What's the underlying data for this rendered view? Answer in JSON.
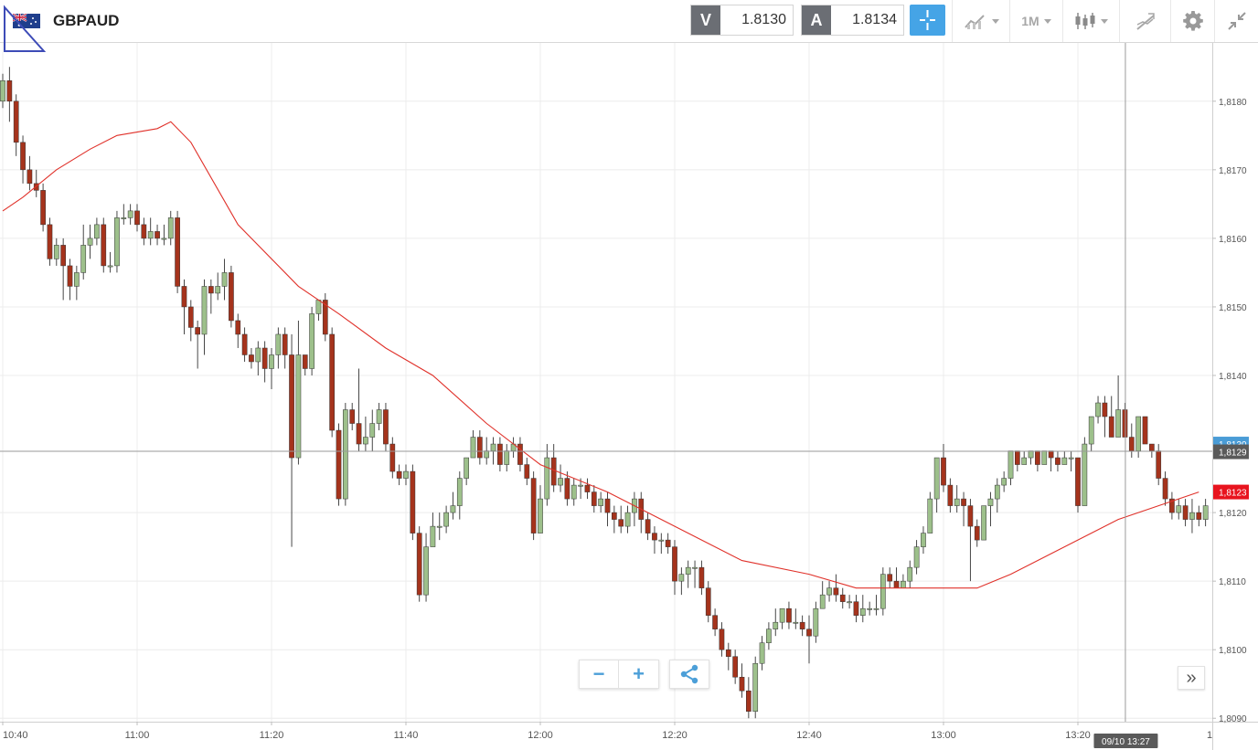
{
  "header": {
    "symbol": "GBPAUD",
    "bid": {
      "tag": "V",
      "value": "1.8130"
    },
    "ask": {
      "tag": "A",
      "value": "1.8134"
    },
    "timeframe": "1M",
    "icons": [
      "flag-icon",
      "crosshair-icon",
      "indicators-icon",
      "candle-type-icon",
      "drawing-icon",
      "gear-icon",
      "collapse-icon"
    ]
  },
  "controls": {
    "zoom_out": "−",
    "zoom_in": "+",
    "scroll_right": "»"
  },
  "colors": {
    "bull": "#9dc08b",
    "bear": "#a5331c",
    "ma": "#e0312a",
    "crosshair_label": "#4a9cd6",
    "last_price_label": "#e8141e"
  },
  "chart_data": {
    "type": "candlestick",
    "symbol": "GBPAUD",
    "interval": "1M",
    "x_ticks": [
      "10:40",
      "11:00",
      "11:20",
      "11:40",
      "12:00",
      "12:20",
      "12:40",
      "13:00",
      "13:20"
    ],
    "x_tick_minutes": [
      640,
      660,
      680,
      700,
      720,
      740,
      760,
      780,
      800
    ],
    "x_start_minute": 640,
    "x_range_minutes": [
      640,
      818
    ],
    "right_edge_tick": "1",
    "y_ticks": [
      "1,8180",
      "1,8170",
      "1,8160",
      "1,8150",
      "1,8140",
      "1,8120",
      "1,8110",
      "1,8100",
      "1,8090"
    ],
    "ylim": [
      1.80895,
      1.81885
    ],
    "crosshair": {
      "time": "09/10 13:27",
      "minute": 807,
      "price": "1,8129",
      "price_value": 1.8129
    },
    "last_price": {
      "label": "1,8123",
      "value": 1.8123
    },
    "hidden_price_label": {
      "label": "1,8130",
      "value": 1.813
    },
    "candles_ohlc": [
      [
        1.818,
        1.8183,
        1.8184,
        1.8179
      ],
      [
        1.8183,
        1.818,
        1.8185,
        1.8177
      ],
      [
        1.818,
        1.8174,
        1.8181,
        1.8172
      ],
      [
        1.8174,
        1.817,
        1.8175,
        1.8168
      ],
      [
        1.817,
        1.8168,
        1.8172,
        1.8167
      ],
      [
        1.8168,
        1.8167,
        1.817,
        1.8166
      ],
      [
        1.8167,
        1.8162,
        1.8168,
        1.8161
      ],
      [
        1.8162,
        1.8157,
        1.8163,
        1.8156
      ],
      [
        1.8157,
        1.8159,
        1.816,
        1.8156
      ],
      [
        1.8159,
        1.8156,
        1.816,
        1.8151
      ],
      [
        1.8156,
        1.8153,
        1.8157,
        1.8151
      ],
      [
        1.8153,
        1.8155,
        1.8156,
        1.8151
      ],
      [
        1.8155,
        1.8159,
        1.8162,
        1.8154
      ],
      [
        1.8159,
        1.816,
        1.8162,
        1.8157
      ],
      [
        1.816,
        1.8162,
        1.8163,
        1.8159
      ],
      [
        1.8162,
        1.8156,
        1.8163,
        1.8155
      ],
      [
        1.8156,
        1.8156,
        1.8158,
        1.8155
      ],
      [
        1.8156,
        1.8163,
        1.8164,
        1.8155
      ],
      [
        1.8163,
        1.8163,
        1.8165,
        1.8162
      ],
      [
        1.8163,
        1.8164,
        1.8165,
        1.8162
      ],
      [
        1.8164,
        1.8162,
        1.8165,
        1.8161
      ],
      [
        1.8162,
        1.816,
        1.8163,
        1.8159
      ],
      [
        1.816,
        1.8161,
        1.8163,
        1.8159
      ],
      [
        1.8161,
        1.816,
        1.8162,
        1.8159
      ],
      [
        1.816,
        1.816,
        1.8162,
        1.8159
      ],
      [
        1.816,
        1.8163,
        1.8164,
        1.8159
      ],
      [
        1.8163,
        1.8153,
        1.8164,
        1.8152
      ],
      [
        1.8153,
        1.815,
        1.8154,
        1.8146
      ],
      [
        1.815,
        1.8147,
        1.8151,
        1.8145
      ],
      [
        1.8147,
        1.8146,
        1.8148,
        1.8141
      ],
      [
        1.8146,
        1.8153,
        1.8154,
        1.8143
      ],
      [
        1.8153,
        1.8152,
        1.8154,
        1.8149
      ],
      [
        1.8152,
        1.8153,
        1.8155,
        1.8151
      ],
      [
        1.8153,
        1.8155,
        1.8157,
        1.8151
      ],
      [
        1.8155,
        1.8148,
        1.8156,
        1.8147
      ],
      [
        1.8148,
        1.8146,
        1.8149,
        1.8144
      ],
      [
        1.8146,
        1.8143,
        1.8147,
        1.8142
      ],
      [
        1.8143,
        1.8142,
        1.8144,
        1.8141
      ],
      [
        1.8142,
        1.8144,
        1.8145,
        1.814
      ],
      [
        1.8144,
        1.8141,
        1.8145,
        1.8139
      ],
      [
        1.8141,
        1.8143,
        1.8144,
        1.8138
      ],
      [
        1.8143,
        1.8146,
        1.8147,
        1.8141
      ],
      [
        1.8146,
        1.8143,
        1.8147,
        1.8141
      ],
      [
        1.8143,
        1.8128,
        1.8146,
        1.8115
      ],
      [
        1.8128,
        1.8143,
        1.8148,
        1.8127
      ],
      [
        1.8143,
        1.8141,
        1.8143,
        1.814
      ],
      [
        1.8141,
        1.8149,
        1.815,
        1.814
      ],
      [
        1.8149,
        1.8151,
        1.8151,
        1.8148
      ],
      [
        1.8151,
        1.8146,
        1.8152,
        1.8145
      ],
      [
        1.8146,
        1.8132,
        1.8147,
        1.8131
      ],
      [
        1.8132,
        1.8122,
        1.8133,
        1.8121
      ],
      [
        1.8122,
        1.8135,
        1.8136,
        1.8121
      ],
      [
        1.8135,
        1.8133,
        1.8136,
        1.8132
      ],
      [
        1.8133,
        1.813,
        1.8141,
        1.8129
      ],
      [
        1.813,
        1.8131,
        1.8134,
        1.8129
      ],
      [
        1.8131,
        1.8133,
        1.8135,
        1.8129
      ],
      [
        1.8133,
        1.8135,
        1.8136,
        1.8132
      ],
      [
        1.8135,
        1.813,
        1.8136,
        1.8129
      ],
      [
        1.813,
        1.8126,
        1.8131,
        1.8125
      ],
      [
        1.8126,
        1.8125,
        1.8127,
        1.8124
      ],
      [
        1.8125,
        1.8126,
        1.8127,
        1.8124
      ],
      [
        1.8126,
        1.8117,
        1.8127,
        1.8116
      ],
      [
        1.8117,
        1.8108,
        1.8118,
        1.8107
      ],
      [
        1.8108,
        1.8115,
        1.8117,
        1.8107
      ],
      [
        1.8115,
        1.8118,
        1.812,
        1.8115
      ],
      [
        1.8118,
        1.8118,
        1.812,
        1.8116
      ],
      [
        1.8118,
        1.812,
        1.8121,
        1.8117
      ],
      [
        1.812,
        1.8121,
        1.8123,
        1.8119
      ],
      [
        1.8121,
        1.8125,
        1.8126,
        1.8119
      ],
      [
        1.8125,
        1.8128,
        1.8128,
        1.8124
      ],
      [
        1.8128,
        1.8131,
        1.8132,
        1.8128
      ],
      [
        1.8131,
        1.8128,
        1.8132,
        1.8127
      ],
      [
        1.8128,
        1.8129,
        1.8131,
        1.8127
      ],
      [
        1.8129,
        1.813,
        1.8131,
        1.8127
      ],
      [
        1.813,
        1.8127,
        1.8131,
        1.8126
      ],
      [
        1.8127,
        1.8129,
        1.813,
        1.8126
      ],
      [
        1.8129,
        1.813,
        1.8131,
        1.8128
      ],
      [
        1.813,
        1.8127,
        1.8131,
        1.8126
      ],
      [
        1.8127,
        1.8125,
        1.8128,
        1.8124
      ],
      [
        1.8125,
        1.8117,
        1.8126,
        1.8116
      ],
      [
        1.8117,
        1.8122,
        1.8124,
        1.8117
      ],
      [
        1.8122,
        1.8128,
        1.813,
        1.8121
      ],
      [
        1.8128,
        1.8124,
        1.813,
        1.8123
      ],
      [
        1.8124,
        1.8125,
        1.8127,
        1.8123
      ],
      [
        1.8125,
        1.8122,
        1.8126,
        1.8121
      ],
      [
        1.8122,
        1.8124,
        1.8125,
        1.8121
      ],
      [
        1.8124,
        1.8124,
        1.8125,
        1.8122
      ],
      [
        1.8124,
        1.8123,
        1.8125,
        1.8122
      ],
      [
        1.8123,
        1.8121,
        1.8124,
        1.812
      ],
      [
        1.8121,
        1.8122,
        1.8123,
        1.812
      ],
      [
        1.8122,
        1.812,
        1.8123,
        1.8118
      ],
      [
        1.812,
        1.8119,
        1.8121,
        1.8117
      ],
      [
        1.8119,
        1.8118,
        1.8121,
        1.8117
      ],
      [
        1.8118,
        1.812,
        1.8121,
        1.8117
      ],
      [
        1.812,
        1.8122,
        1.8123,
        1.8118
      ],
      [
        1.8122,
        1.8119,
        1.8123,
        1.8117
      ],
      [
        1.8119,
        1.8117,
        1.812,
        1.8116
      ],
      [
        1.8117,
        1.8116,
        1.8118,
        1.8114
      ],
      [
        1.8116,
        1.8116,
        1.8117,
        1.8114
      ],
      [
        1.8116,
        1.8115,
        1.8117,
        1.8114
      ],
      [
        1.8115,
        1.811,
        1.8116,
        1.8108
      ],
      [
        1.811,
        1.8111,
        1.8112,
        1.8108
      ],
      [
        1.8111,
        1.8112,
        1.8113,
        1.8109
      ],
      [
        1.8112,
        1.8112,
        1.8113,
        1.8109
      ],
      [
        1.8112,
        1.8109,
        1.8113,
        1.8108
      ],
      [
        1.8109,
        1.8105,
        1.811,
        1.8104
      ],
      [
        1.8105,
        1.8103,
        1.8106,
        1.8102
      ],
      [
        1.8103,
        1.81,
        1.8104,
        1.8099
      ],
      [
        1.81,
        1.8099,
        1.8101,
        1.8097
      ],
      [
        1.8099,
        1.8096,
        1.81,
        1.8095
      ],
      [
        1.8096,
        1.8094,
        1.8098,
        1.8093
      ],
      [
        1.8094,
        1.8091,
        1.8096,
        1.809
      ],
      [
        1.8091,
        1.8098,
        1.8099,
        1.809
      ],
      [
        1.8098,
        1.8101,
        1.8102,
        1.8097
      ],
      [
        1.8101,
        1.8103,
        1.8104,
        1.81
      ],
      [
        1.8103,
        1.8104,
        1.8106,
        1.8102
      ],
      [
        1.8104,
        1.8106,
        1.8106,
        1.8103
      ],
      [
        1.8106,
        1.8104,
        1.8107,
        1.8103
      ],
      [
        1.8104,
        1.8104,
        1.8106,
        1.8103
      ],
      [
        1.8104,
        1.8103,
        1.8105,
        1.8102
      ],
      [
        1.8103,
        1.8102,
        1.8105,
        1.8098
      ],
      [
        1.8102,
        1.8106,
        1.8107,
        1.8101
      ],
      [
        1.8106,
        1.8108,
        1.811,
        1.8106
      ],
      [
        1.8108,
        1.8109,
        1.811,
        1.8107
      ],
      [
        1.8109,
        1.8108,
        1.8111,
        1.8107
      ],
      [
        1.8108,
        1.8107,
        1.8109,
        1.8106
      ],
      [
        1.8107,
        1.8107,
        1.8108,
        1.8106
      ],
      [
        1.8107,
        1.8105,
        1.8108,
        1.8104
      ],
      [
        1.8105,
        1.8106,
        1.8108,
        1.8104
      ],
      [
        1.8106,
        1.8106,
        1.8107,
        1.8105
      ],
      [
        1.8106,
        1.8106,
        1.8108,
        1.8105
      ],
      [
        1.8106,
        1.8111,
        1.8112,
        1.8105
      ],
      [
        1.8111,
        1.811,
        1.8112,
        1.8109
      ],
      [
        1.811,
        1.8109,
        1.8112,
        1.8109
      ],
      [
        1.8109,
        1.811,
        1.8111,
        1.8109
      ],
      [
        1.811,
        1.8112,
        1.8113,
        1.8109
      ],
      [
        1.8112,
        1.8115,
        1.8116,
        1.8111
      ],
      [
        1.8115,
        1.8117,
        1.8118,
        1.8114
      ],
      [
        1.8117,
        1.8122,
        1.8123,
        1.8117
      ],
      [
        1.8122,
        1.8128,
        1.8128,
        1.812
      ],
      [
        1.8128,
        1.8124,
        1.813,
        1.8123
      ],
      [
        1.8124,
        1.8121,
        1.8125,
        1.812
      ],
      [
        1.8121,
        1.8122,
        1.8124,
        1.812
      ],
      [
        1.8122,
        1.8121,
        1.8123,
        1.8118
      ],
      [
        1.8121,
        1.8118,
        1.8122,
        1.811
      ],
      [
        1.8118,
        1.8116,
        1.8119,
        1.8115
      ],
      [
        1.8116,
        1.8121,
        1.8121,
        1.8116
      ],
      [
        1.8121,
        1.8122,
        1.8123,
        1.8118
      ],
      [
        1.8122,
        1.8124,
        1.8125,
        1.812
      ],
      [
        1.8124,
        1.8125,
        1.8126,
        1.8123
      ],
      [
        1.8125,
        1.8129,
        1.8129,
        1.8124
      ],
      [
        1.8129,
        1.8127,
        1.8129,
        1.8126
      ],
      [
        1.8127,
        1.8128,
        1.8129,
        1.8127
      ],
      [
        1.8128,
        1.8129,
        1.8129,
        1.8127
      ],
      [
        1.8129,
        1.8127,
        1.8129,
        1.8126
      ],
      [
        1.8127,
        1.8129,
        1.8129,
        1.8127
      ],
      [
        1.8129,
        1.8128,
        1.8129,
        1.8126
      ],
      [
        1.8128,
        1.8127,
        1.8129,
        1.8126
      ],
      [
        1.8127,
        1.8128,
        1.8129,
        1.8127
      ],
      [
        1.8128,
        1.8128,
        1.8129,
        1.8126
      ],
      [
        1.8128,
        1.8121,
        1.8128,
        1.812
      ],
      [
        1.8121,
        1.813,
        1.8131,
        1.8121
      ],
      [
        1.813,
        1.8134,
        1.8134,
        1.8129
      ],
      [
        1.8134,
        1.8136,
        1.8137,
        1.8133
      ],
      [
        1.8136,
        1.8134,
        1.8137,
        1.8131
      ],
      [
        1.8134,
        1.8131,
        1.8137,
        1.8131
      ],
      [
        1.8131,
        1.8135,
        1.814,
        1.8131
      ],
      [
        1.8135,
        1.8131,
        1.8136,
        1.8131
      ],
      [
        1.8131,
        1.8129,
        1.8133,
        1.8128
      ],
      [
        1.8129,
        1.8134,
        1.8134,
        1.8128
      ],
      [
        1.8134,
        1.813,
        1.8134,
        1.813
      ],
      [
        1.813,
        1.8129,
        1.813,
        1.8128
      ],
      [
        1.8129,
        1.8125,
        1.813,
        1.8124
      ],
      [
        1.8125,
        1.8122,
        1.8126,
        1.8121
      ],
      [
        1.8122,
        1.812,
        1.8123,
        1.8119
      ],
      [
        1.812,
        1.8121,
        1.8122,
        1.8119
      ],
      [
        1.8121,
        1.8119,
        1.8122,
        1.8118
      ],
      [
        1.8119,
        1.812,
        1.8122,
        1.8117
      ],
      [
        1.812,
        1.8119,
        1.8121,
        1.8118
      ],
      [
        1.8119,
        1.8121,
        1.8122,
        1.8118
      ],
      [
        1.8121,
        1.8123,
        1.8125,
        1.812
      ]
    ],
    "moving_average": {
      "minutes": [
        640,
        643,
        648,
        653,
        657,
        663,
        665,
        668,
        675,
        684,
        690,
        697,
        704,
        712,
        720,
        730,
        742,
        750,
        760,
        767,
        775,
        780,
        785,
        790,
        798,
        806,
        812,
        818
      ],
      "values": [
        1.8164,
        1.8166,
        1.817,
        1.8173,
        1.8175,
        1.8176,
        1.8177,
        1.8174,
        1.8162,
        1.8153,
        1.8149,
        1.8144,
        1.814,
        1.8133,
        1.8127,
        1.8123,
        1.8117,
        1.8113,
        1.8111,
        1.8109,
        1.8109,
        1.8109,
        1.8109,
        1.8111,
        1.8115,
        1.8119,
        1.8121,
        1.8123
      ]
    }
  }
}
